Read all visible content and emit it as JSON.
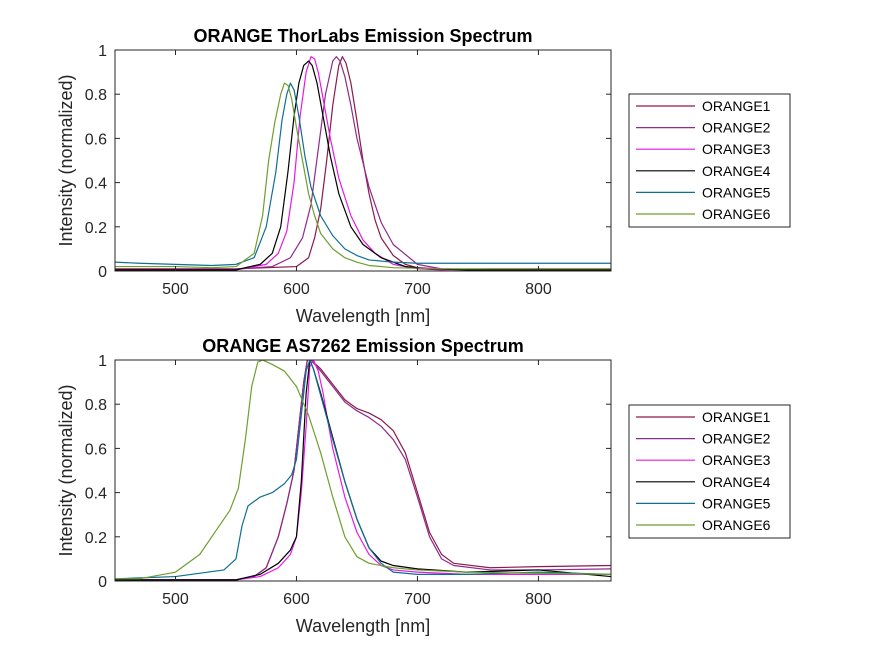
{
  "figure": {
    "background": "#ffffff"
  },
  "chart_data": [
    {
      "type": "line",
      "title": "ORANGE ThorLabs Emission Spectrum",
      "xlabel": "Wavelength [nm]",
      "ylabel": "Intensity (normalized)",
      "xlim": [
        450,
        860
      ],
      "ylim": [
        0,
        1
      ],
      "xticks": [
        500,
        600,
        700,
        800
      ],
      "yticks": [
        0,
        0.2,
        0.4,
        0.6,
        0.8,
        1
      ],
      "ytick_labels": [
        "0",
        "0.2",
        "0.4",
        "0.6",
        "0.8",
        "1"
      ],
      "grid": false,
      "legend_position": "right",
      "series": [
        {
          "name": "ORANGE1",
          "color": "#8c1a4b",
          "x": [
            450,
            550,
            600,
            610,
            615,
            620,
            625,
            630,
            635,
            638,
            641,
            645,
            650,
            655,
            660,
            665,
            670,
            680,
            690,
            700,
            720,
            760,
            860
          ],
          "y": [
            0.01,
            0.01,
            0.02,
            0.06,
            0.15,
            0.28,
            0.5,
            0.75,
            0.93,
            0.97,
            0.94,
            0.85,
            0.68,
            0.5,
            0.35,
            0.23,
            0.15,
            0.07,
            0.03,
            0.015,
            0.01,
            0.005,
            0.005
          ]
        },
        {
          "name": "ORANGE2",
          "color": "#8e2b8b",
          "x": [
            450,
            540,
            580,
            595,
            605,
            612,
            618,
            624,
            630,
            633,
            636,
            640,
            645,
            650,
            660,
            670,
            680,
            700,
            720,
            760,
            860
          ],
          "y": [
            0.005,
            0.005,
            0.02,
            0.06,
            0.15,
            0.3,
            0.55,
            0.8,
            0.95,
            0.97,
            0.95,
            0.88,
            0.75,
            0.6,
            0.38,
            0.22,
            0.12,
            0.03,
            0.01,
            0.005,
            0.005
          ]
        },
        {
          "name": "ORANGE3",
          "color": "#e619e6",
          "x": [
            450,
            550,
            575,
            585,
            592,
            598,
            603,
            608,
            612,
            615,
            618,
            622,
            628,
            635,
            645,
            655,
            665,
            680,
            700,
            720,
            760,
            860
          ],
          "y": [
            0.005,
            0.005,
            0.03,
            0.08,
            0.18,
            0.4,
            0.7,
            0.9,
            0.97,
            0.96,
            0.9,
            0.78,
            0.6,
            0.42,
            0.25,
            0.14,
            0.08,
            0.03,
            0.01,
            0.005,
            0.01,
            0.01
          ]
        },
        {
          "name": "ORANGE4",
          "color": "#000000",
          "x": [
            450,
            550,
            570,
            580,
            587,
            593,
            598,
            602,
            606,
            610,
            613,
            617,
            622,
            628,
            635,
            645,
            655,
            670,
            690,
            710,
            740,
            860
          ],
          "y": [
            0.005,
            0.005,
            0.03,
            0.08,
            0.2,
            0.45,
            0.7,
            0.85,
            0.93,
            0.95,
            0.93,
            0.85,
            0.7,
            0.52,
            0.35,
            0.2,
            0.12,
            0.06,
            0.02,
            0.01,
            0.005,
            0.005
          ]
        },
        {
          "name": "ORANGE5",
          "color": "#0f6e94",
          "x": [
            450,
            470,
            500,
            530,
            550,
            565,
            575,
            583,
            588,
            592,
            595,
            598,
            602,
            607,
            612,
            620,
            630,
            640,
            650,
            660,
            680,
            700,
            760,
            860
          ],
          "y": [
            0.04,
            0.035,
            0.03,
            0.025,
            0.03,
            0.06,
            0.2,
            0.45,
            0.68,
            0.8,
            0.85,
            0.82,
            0.7,
            0.52,
            0.38,
            0.25,
            0.16,
            0.1,
            0.07,
            0.05,
            0.04,
            0.035,
            0.035,
            0.035
          ]
        },
        {
          "name": "ORANGE6",
          "color": "#6f9e2e",
          "x": [
            450,
            500,
            530,
            550,
            565,
            572,
            577,
            582,
            587,
            590,
            593,
            596,
            600,
            605,
            610,
            615,
            620,
            630,
            640,
            650,
            660,
            680,
            720,
            860
          ],
          "y": [
            0.02,
            0.02,
            0.015,
            0.02,
            0.08,
            0.25,
            0.5,
            0.67,
            0.8,
            0.85,
            0.84,
            0.78,
            0.65,
            0.5,
            0.35,
            0.25,
            0.17,
            0.1,
            0.06,
            0.04,
            0.025,
            0.015,
            0.01,
            0.01
          ]
        }
      ]
    },
    {
      "type": "line",
      "title": "ORANGE AS7262 Emission Spectrum",
      "xlabel": "Wavelength [nm]",
      "ylabel": "Intensity (normalized)",
      "xlim": [
        450,
        860
      ],
      "ylim": [
        0,
        1
      ],
      "xticks": [
        500,
        600,
        700,
        800
      ],
      "yticks": [
        0,
        0.2,
        0.4,
        0.6,
        0.8,
        1
      ],
      "ytick_labels": [
        "0",
        "0.2",
        "0.4",
        "0.6",
        "0.8",
        "1"
      ],
      "grid": false,
      "legend_position": "right",
      "series": [
        {
          "name": "ORANGE1",
          "color": "#8c1a4b",
          "x": [
            450,
            500,
            550,
            565,
            575,
            585,
            592,
            598,
            602,
            606,
            609,
            612,
            620,
            630,
            640,
            650,
            660,
            670,
            680,
            690,
            700,
            710,
            720,
            730,
            760,
            800,
            860
          ],
          "y": [
            0.005,
            0.005,
            0.005,
            0.02,
            0.06,
            0.2,
            0.35,
            0.5,
            0.7,
            0.9,
            1.0,
            1.0,
            0.96,
            0.89,
            0.82,
            0.78,
            0.76,
            0.73,
            0.68,
            0.58,
            0.4,
            0.22,
            0.12,
            0.08,
            0.06,
            0.065,
            0.07
          ]
        },
        {
          "name": "ORANGE2",
          "color": "#8e2b8b",
          "x": [
            450,
            500,
            550,
            565,
            575,
            585,
            592,
            598,
            602,
            606,
            609,
            612,
            620,
            630,
            640,
            650,
            660,
            670,
            680,
            690,
            700,
            710,
            720,
            730,
            760,
            800,
            860
          ],
          "y": [
            0.005,
            0.005,
            0.005,
            0.02,
            0.06,
            0.2,
            0.35,
            0.5,
            0.7,
            0.9,
            1.0,
            1.0,
            0.95,
            0.88,
            0.81,
            0.77,
            0.74,
            0.7,
            0.64,
            0.55,
            0.38,
            0.2,
            0.1,
            0.07,
            0.05,
            0.05,
            0.055
          ]
        },
        {
          "name": "ORANGE3",
          "color": "#e619e6",
          "x": [
            450,
            500,
            550,
            570,
            585,
            595,
            600,
            604,
            608,
            611,
            614,
            618,
            622,
            626,
            630,
            640,
            650,
            660,
            670,
            680,
            700,
            740,
            800,
            860
          ],
          "y": [
            0.005,
            0.005,
            0.005,
            0.02,
            0.06,
            0.12,
            0.2,
            0.4,
            0.7,
            0.97,
            1.0,
            0.95,
            0.85,
            0.72,
            0.6,
            0.38,
            0.22,
            0.12,
            0.07,
            0.05,
            0.04,
            0.03,
            0.03,
            0.03
          ]
        },
        {
          "name": "ORANGE4",
          "color": "#000000",
          "x": [
            450,
            500,
            550,
            570,
            585,
            595,
            600,
            604,
            608,
            611,
            614,
            620,
            630,
            640,
            650,
            660,
            670,
            680,
            700,
            740,
            800,
            860
          ],
          "y": [
            0.005,
            0.005,
            0.005,
            0.03,
            0.08,
            0.14,
            0.2,
            0.45,
            0.85,
            1.0,
            0.96,
            0.85,
            0.65,
            0.45,
            0.28,
            0.15,
            0.09,
            0.07,
            0.055,
            0.04,
            0.05,
            0.02
          ]
        },
        {
          "name": "ORANGE5",
          "color": "#0f6e94",
          "x": [
            450,
            500,
            540,
            550,
            555,
            560,
            570,
            580,
            590,
            596,
            600,
            604,
            608,
            611,
            614,
            620,
            630,
            640,
            650,
            660,
            670,
            680,
            700,
            740,
            800,
            860
          ],
          "y": [
            0.01,
            0.02,
            0.05,
            0.1,
            0.25,
            0.34,
            0.38,
            0.4,
            0.44,
            0.48,
            0.55,
            0.75,
            0.95,
            1.0,
            0.96,
            0.84,
            0.64,
            0.45,
            0.28,
            0.15,
            0.08,
            0.04,
            0.03,
            0.03,
            0.04,
            0.03
          ]
        },
        {
          "name": "ORANGE6",
          "color": "#6f9e2e",
          "x": [
            450,
            470,
            500,
            520,
            535,
            545,
            552,
            558,
            563,
            568,
            572,
            580,
            590,
            600,
            610,
            620,
            630,
            640,
            650,
            660,
            680,
            700,
            740,
            800,
            860
          ],
          "y": [
            0.01,
            0.01,
            0.04,
            0.12,
            0.24,
            0.32,
            0.42,
            0.65,
            0.88,
            0.99,
            1.0,
            0.98,
            0.95,
            0.88,
            0.75,
            0.58,
            0.38,
            0.2,
            0.11,
            0.08,
            0.06,
            0.05,
            0.04,
            0.035,
            0.03
          ]
        }
      ]
    }
  ]
}
